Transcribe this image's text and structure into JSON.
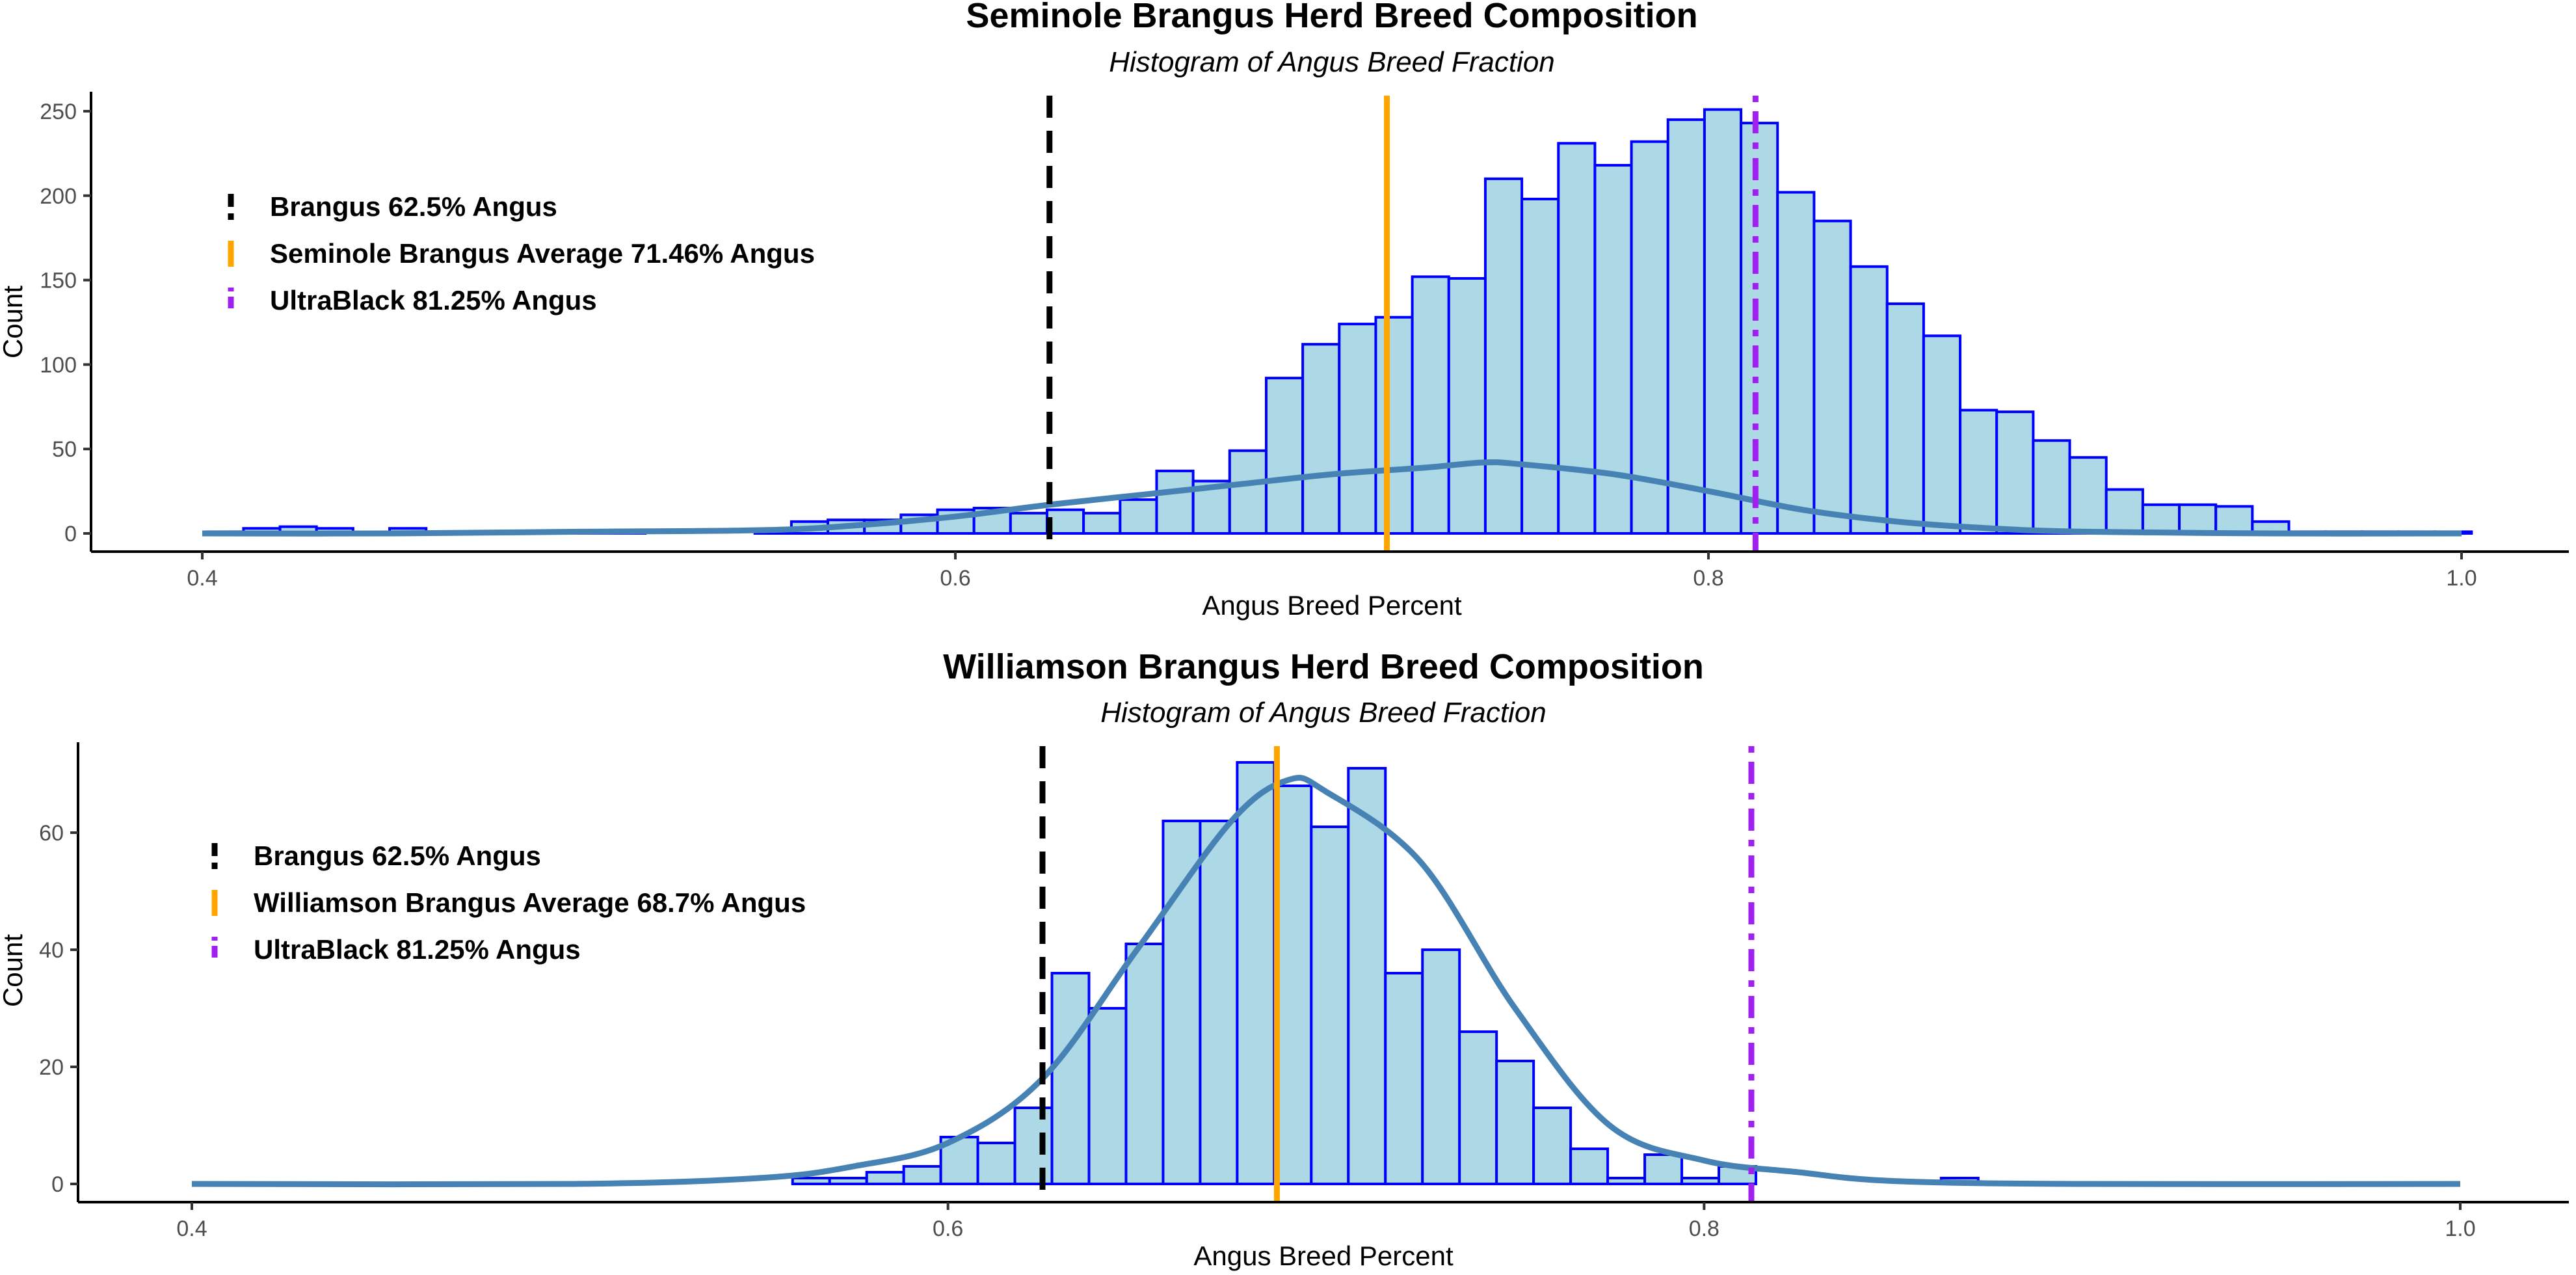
{
  "chart_data": [
    {
      "type": "histogram",
      "title": "Seminole Brangus Herd Breed Composition",
      "subtitle": "Histogram of Angus Breed Fraction",
      "xlabel": "Angus Breed Percent",
      "ylabel": "Count",
      "xlim": [
        0.4,
        1.0
      ],
      "ylim": [
        0,
        260
      ],
      "x_ticks": [
        0.4,
        0.6,
        0.8,
        1.0
      ],
      "x_tick_labels": [
        "0.4",
        "0.6",
        "0.8",
        "1.0"
      ],
      "y_ticks": [
        0,
        50,
        100,
        150,
        200,
        250
      ],
      "y_tick_labels": [
        "0",
        "50",
        "100",
        "150",
        "200",
        "250"
      ],
      "bin_start": 0.40125,
      "bin_width": 0.0097,
      "counts": [
        1,
        3,
        4,
        3,
        0,
        3,
        0,
        0,
        0,
        0,
        1,
        1,
        0,
        0,
        0,
        1,
        7,
        8,
        8,
        11,
        14,
        15,
        12,
        14,
        12,
        20,
        37,
        31,
        49,
        92,
        112,
        124,
        128,
        152,
        151,
        210,
        198,
        231,
        218,
        232,
        245,
        251,
        243,
        202,
        185,
        158,
        136,
        117,
        73,
        72,
        55,
        45,
        26,
        17,
        17,
        16,
        7,
        1,
        1,
        1,
        1,
        1,
        0,
        0,
        0,
        0,
        0
      ],
      "density": {
        "x": [
          0.4,
          0.45,
          0.5,
          0.55,
          0.575,
          0.6,
          0.625,
          0.65,
          0.675,
          0.7,
          0.725,
          0.74,
          0.75,
          0.775,
          0.8,
          0.825,
          0.85,
          0.875,
          0.9,
          0.95,
          1.0
        ],
        "y": [
          0,
          0,
          1,
          2,
          5,
          10,
          17,
          23,
          29,
          35,
          39,
          42,
          41,
          35,
          25,
          14,
          7,
          3,
          1,
          0,
          0
        ]
      },
      "reference_lines": [
        {
          "label": "Brangus 62.5% Angus",
          "x": 0.625,
          "color": "#000000",
          "style": "dashed"
        },
        {
          "label": "Seminole Brangus Average 71.46% Angus",
          "x": 0.7146,
          "color": "#ffa500",
          "style": "solid"
        },
        {
          "label": "UltraBlack 81.25% Angus",
          "x": 0.8125,
          "color": "#a020f0",
          "style": "dotdash"
        }
      ],
      "legend_position": "top-left",
      "fill_color": "#add8e6",
      "edge_color": "#0000ff",
      "density_color": "#4682b4"
    },
    {
      "type": "histogram",
      "title": "Williamson Brangus Herd Breed Composition",
      "subtitle": "Histogram of Angus Breed Fraction",
      "xlabel": "Angus Breed Percent",
      "ylabel": "Count",
      "xlim": [
        0.4,
        1.0
      ],
      "ylim": [
        0,
        75
      ],
      "x_ticks": [
        0.4,
        0.6,
        0.8,
        1.0
      ],
      "x_tick_labels": [
        "0.4",
        "0.6",
        "0.8",
        "1.0"
      ],
      "y_ticks": [
        0,
        20,
        40,
        60
      ],
      "y_tick_labels": [
        "0",
        "20",
        "40",
        "60"
      ],
      "bin_start": 0.5589,
      "bin_width": 0.0098,
      "counts": [
        1,
        1,
        2,
        3,
        8,
        7,
        13,
        36,
        30,
        41,
        62,
        62,
        72,
        68,
        61,
        71,
        36,
        40,
        26,
        21,
        13,
        6,
        1,
        5,
        1,
        3,
        0,
        0,
        0,
        0,
        0,
        1
      ],
      "density": {
        "x": [
          0.4,
          0.5,
          0.55,
          0.575,
          0.6,
          0.625,
          0.65,
          0.675,
          0.69,
          0.7,
          0.725,
          0.75,
          0.775,
          0.8,
          0.825,
          0.85,
          0.9,
          1.0
        ],
        "y": [
          0,
          0,
          1,
          3,
          7,
          18,
          40,
          62,
          69,
          67,
          55,
          30,
          10,
          4,
          2,
          0.5,
          0,
          0
        ]
      },
      "reference_lines": [
        {
          "label": "Brangus 62.5% Angus",
          "x": 0.625,
          "color": "#000000",
          "style": "dashed"
        },
        {
          "label": "Williamson Brangus Average 68.7% Angus",
          "x": 0.687,
          "color": "#ffa500",
          "style": "solid"
        },
        {
          "label": "UltraBlack 81.25% Angus",
          "x": 0.8125,
          "color": "#a020f0",
          "style": "dotdash"
        }
      ],
      "legend_position": "top-left",
      "fill_color": "#add8e6",
      "edge_color": "#0000ff",
      "density_color": "#4682b4"
    }
  ]
}
